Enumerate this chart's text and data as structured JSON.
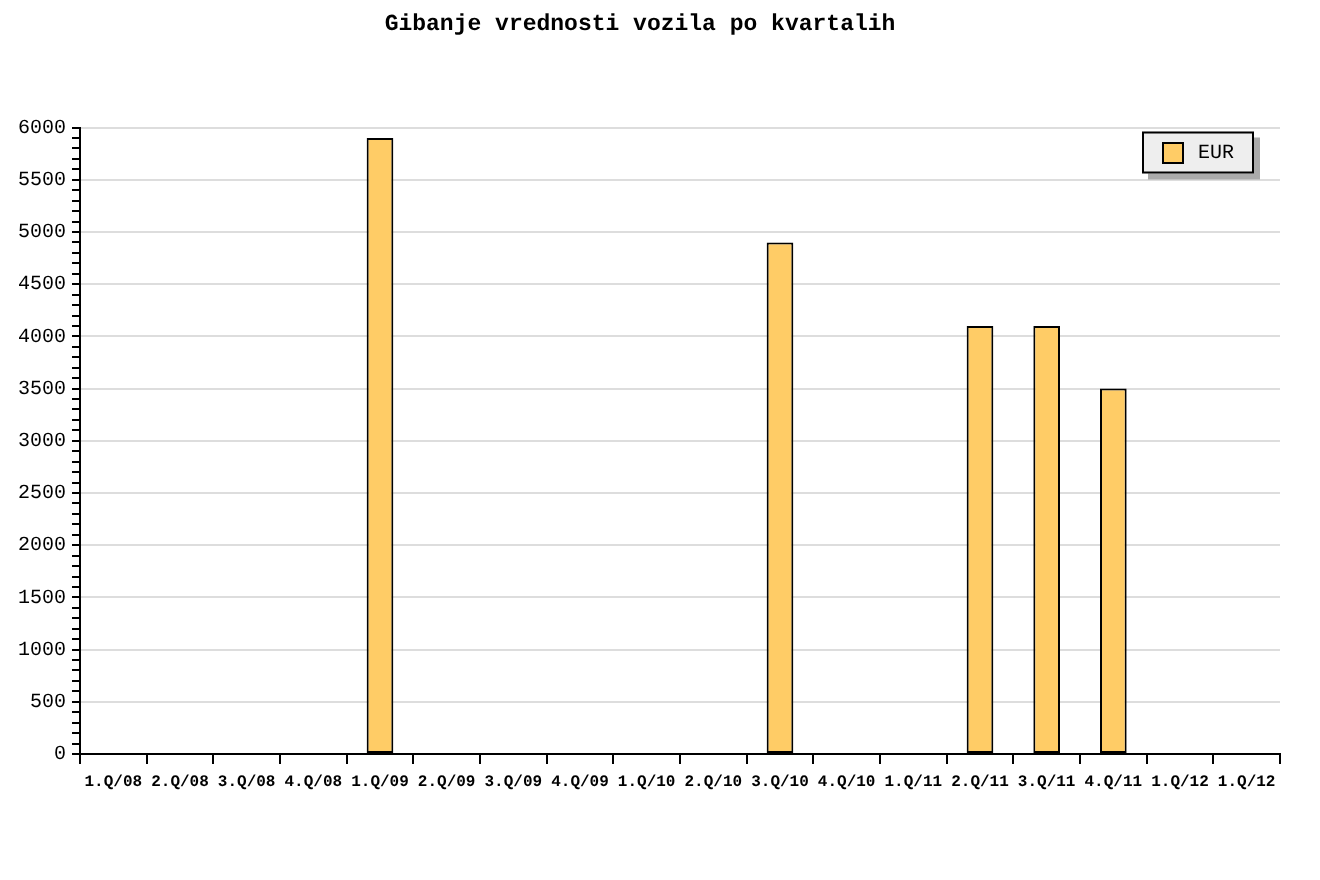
{
  "chart_data": {
    "type": "bar",
    "title": "Gibanje vrednosti vozila po kvartalih",
    "categories": [
      "1.Q/08",
      "2.Q/08",
      "3.Q/08",
      "4.Q/08",
      "1.Q/09",
      "2.Q/09",
      "3.Q/09",
      "4.Q/09",
      "1.Q/10",
      "2.Q/10",
      "3.Q/10",
      "4.Q/10",
      "1.Q/11",
      "2.Q/11",
      "3.Q/11",
      "4.Q/11",
      "1.Q/12",
      "1.Q/12"
    ],
    "series": [
      {
        "name": "EUR",
        "color": "#ffcc66",
        "values": [
          null,
          null,
          null,
          null,
          5900,
          null,
          null,
          null,
          null,
          null,
          4900,
          null,
          null,
          4100,
          4100,
          3500,
          null,
          null
        ]
      }
    ],
    "ylim": [
      0,
      6000
    ],
    "yticks": [
      0,
      {
        "value": 100,
        "label": null
      },
      {
        "value": 200,
        "label": null
      },
      {
        "value": 300,
        "label": null
      },
      {
        "value": 400,
        "label": null
      },
      500,
      {
        "value": 600,
        "label": null
      },
      {
        "value": 700,
        "label": null
      },
      {
        "value": 800,
        "label": null
      },
      {
        "value": 900,
        "label": null
      },
      1000,
      {
        "value": 1100,
        "label": null
      },
      {
        "value": 1200,
        "label": null
      },
      {
        "value": 1300,
        "label": null
      },
      {
        "value": 1400,
        "label": null
      },
      1500,
      {
        "value": 1600,
        "label": null
      },
      {
        "value": 1700,
        "label": null
      },
      {
        "value": 1800,
        "label": null
      },
      {
        "value": 1900,
        "label": null
      },
      2000,
      {
        "value": 2100,
        "label": null
      },
      {
        "value": 2200,
        "label": null
      },
      {
        "value": 2300,
        "label": null
      },
      {
        "value": 2400,
        "label": null
      },
      2500,
      {
        "value": 2600,
        "label": null
      },
      {
        "value": 2700,
        "label": null
      },
      {
        "value": 2800,
        "label": null
      },
      {
        "value": 2900,
        "label": null
      },
      3000,
      {
        "value": 3100,
        "label": null
      },
      {
        "value": 3200,
        "label": null
      },
      {
        "value": 3300,
        "label": null
      },
      {
        "value": 3400,
        "label": null
      },
      3500,
      {
        "value": 3600,
        "label": null
      },
      {
        "value": 3700,
        "label": null
      },
      {
        "value": 3800,
        "label": null
      },
      {
        "value": 3900,
        "label": null
      },
      4000,
      {
        "value": 4100,
        "label": null
      },
      {
        "value": 4200,
        "label": null
      },
      {
        "value": 4300,
        "label": null
      },
      {
        "value": 4400,
        "label": null
      },
      4500,
      {
        "value": 4600,
        "label": null
      },
      {
        "value": 4700,
        "label": null
      },
      {
        "value": 4800,
        "label": null
      },
      {
        "value": 4900,
        "label": null
      },
      5000,
      {
        "value": 5100,
        "label": null
      },
      {
        "value": 5200,
        "label": null
      },
      {
        "value": 5300,
        "label": null
      },
      {
        "value": 5400,
        "label": null
      },
      5500,
      {
        "value": 5600,
        "label": null
      },
      {
        "value": 5700,
        "label": null
      },
      {
        "value": 5800,
        "label": null
      },
      {
        "value": 5900,
        "label": null
      },
      6000
    ],
    "grid": "y",
    "legend": "top right"
  }
}
